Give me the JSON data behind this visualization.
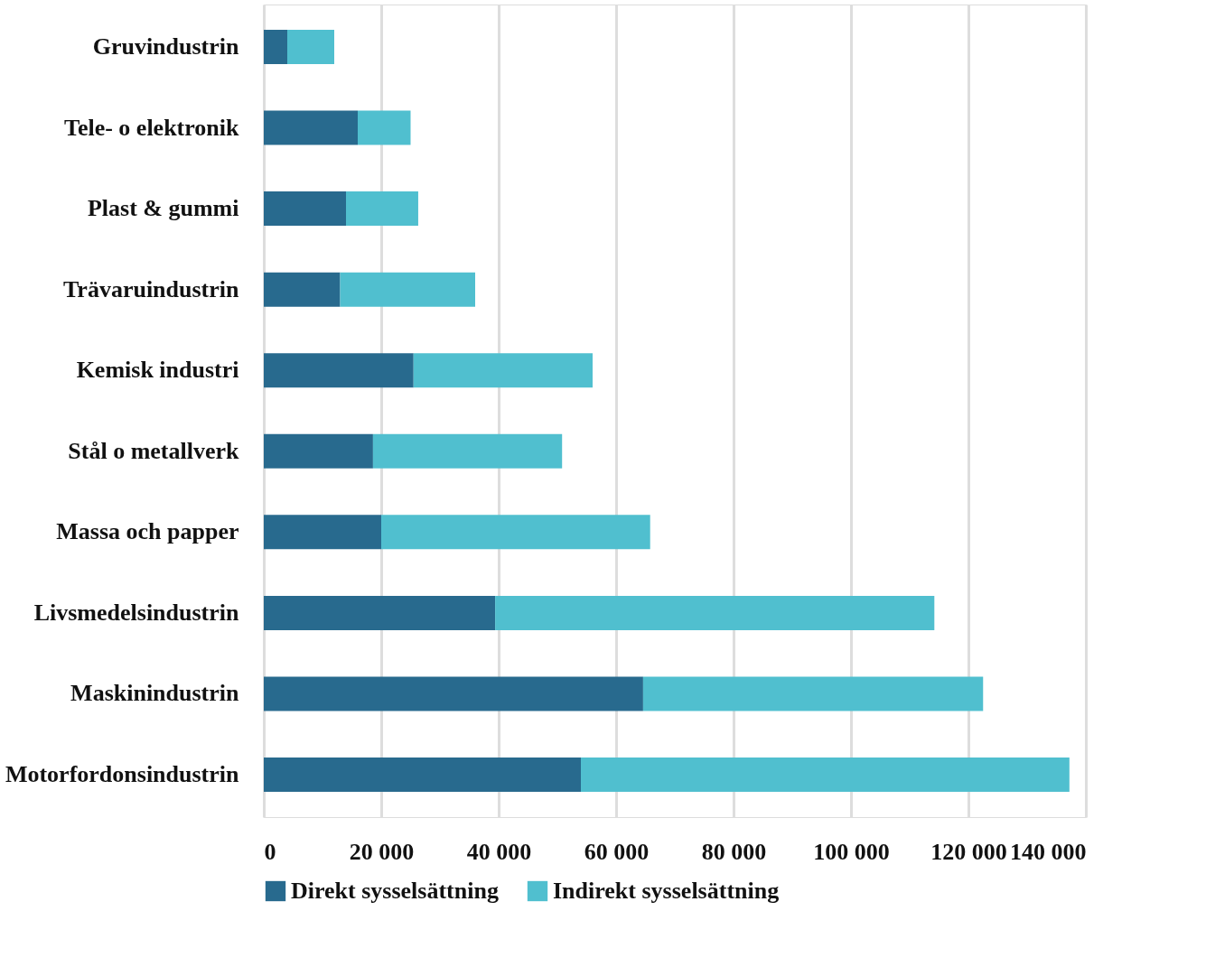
{
  "chart_data": {
    "type": "bar",
    "orientation": "horizontal",
    "stacked": true,
    "categories": [
      "Gruvindustrin",
      "Tele- o elektronik",
      "Plast & gummi",
      "Trävaruindustrin",
      "Kemisk industri",
      "Stål o metallverk",
      "Massa och papper",
      "Livsmedelsindustrin",
      "Maskinindustrin",
      "Motorfordonsindustrin"
    ],
    "series": [
      {
        "name": "Direkt sysselsättning",
        "color": "#286a8e",
        "values": [
          4000,
          16000,
          14000,
          13000,
          25500,
          18600,
          20000,
          39400,
          64600,
          54000
        ]
      },
      {
        "name": "Indirekt sysselsättning",
        "color": "#50bfcf",
        "values": [
          8000,
          9000,
          12300,
          23000,
          30500,
          32200,
          45800,
          74800,
          57900,
          83200
        ]
      }
    ],
    "xlim": [
      0,
      140000
    ],
    "xticks": [
      0,
      {
        "value": 20000,
        "label": "20 000"
      },
      {
        "value": 40000,
        "label": "40 000"
      },
      {
        "value": 60000,
        "label": "60 000"
      },
      {
        "value": 80000,
        "label": "80 000"
      },
      {
        "value": 100000,
        "label": "100 000"
      },
      {
        "value": 120000,
        "label": "120 000"
      },
      {
        "value": 140000,
        "label": "140 000"
      }
    ],
    "grid": "x",
    "legend": "bottom"
  }
}
